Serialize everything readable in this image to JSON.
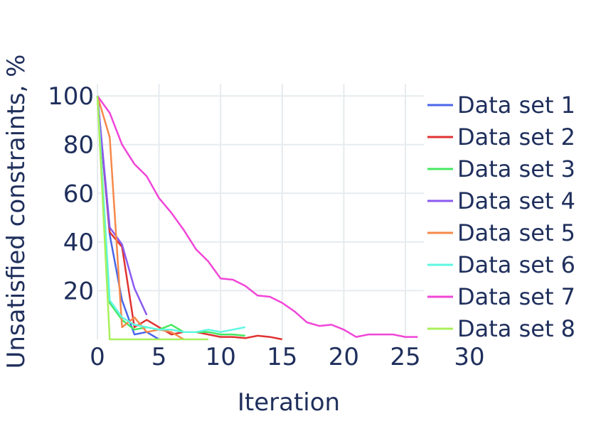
{
  "chart_data": {
    "type": "line",
    "title": "",
    "xlabel": "Iteration",
    "ylabel": "Unsatisfied constraints, %",
    "xlim": [
      0,
      26.5
    ],
    "ylim": [
      0,
      105
    ],
    "xticks": [
      0,
      5,
      10,
      15,
      20,
      25,
      30
    ],
    "yticks": [
      20,
      40,
      60,
      80,
      100
    ],
    "grid": true,
    "legend_position": "right",
    "series": [
      {
        "name": "Data set 1",
        "color": "#4a66e8",
        "x": [
          0,
          1,
          2,
          3,
          4,
          5
        ],
        "y": [
          100,
          43,
          16,
          2,
          3,
          0
        ]
      },
      {
        "name": "Data set 2",
        "color": "#e03232",
        "x": [
          0,
          1,
          2,
          3,
          4,
          5,
          6,
          7,
          8,
          9,
          10,
          11,
          12,
          13,
          14,
          15
        ],
        "y": [
          100,
          44,
          38,
          5,
          8,
          5,
          2,
          3,
          3,
          2,
          1,
          1,
          0.5,
          1.5,
          1,
          0
        ]
      },
      {
        "name": "Data set 3",
        "color": "#45e860",
        "x": [
          0,
          1,
          2,
          3,
          4,
          5,
          6,
          7,
          8,
          9,
          10,
          11,
          12
        ],
        "y": [
          100,
          15,
          8,
          4,
          5,
          4,
          6,
          3,
          3,
          3,
          2,
          2,
          1.5
        ]
      },
      {
        "name": "Data set 4",
        "color": "#8a5af0",
        "x": [
          0,
          1,
          2,
          3,
          4
        ],
        "y": [
          100,
          46,
          39,
          21,
          10
        ]
      },
      {
        "name": "Data set 5",
        "color": "#f5894a",
        "x": [
          0,
          1,
          2,
          3,
          4,
          5,
          6,
          7
        ],
        "y": [
          100,
          83,
          5,
          9,
          3,
          4,
          3,
          0
        ]
      },
      {
        "name": "Data set 6",
        "color": "#5ef7e0",
        "x": [
          0,
          1,
          2,
          3,
          4,
          5,
          6,
          7,
          8,
          9,
          10,
          11,
          12
        ],
        "y": [
          100,
          16,
          9,
          6,
          5,
          4,
          4,
          3,
          3,
          4,
          3,
          4,
          5
        ]
      },
      {
        "name": "Data set 7",
        "color": "#f045d8",
        "x": [
          0,
          1,
          2,
          3,
          4,
          5,
          6,
          7,
          8,
          9,
          10,
          11,
          12,
          13,
          14,
          15,
          16,
          17,
          18,
          19,
          20,
          21,
          22,
          23,
          24,
          25,
          26
        ],
        "y": [
          100,
          93,
          80,
          72,
          67,
          58,
          52,
          45,
          37,
          32,
          25,
          24.5,
          22,
          18,
          17.5,
          15,
          11.5,
          7,
          5.5,
          6,
          4,
          1,
          2,
          2,
          2,
          1,
          1
        ]
      },
      {
        "name": "Data set 8",
        "color": "#a8f05a",
        "x": [
          0,
          1,
          2,
          3,
          4,
          5,
          6,
          7,
          8,
          9
        ],
        "y": [
          100,
          0,
          0,
          0,
          0,
          0,
          0,
          0,
          0,
          0
        ]
      }
    ]
  }
}
